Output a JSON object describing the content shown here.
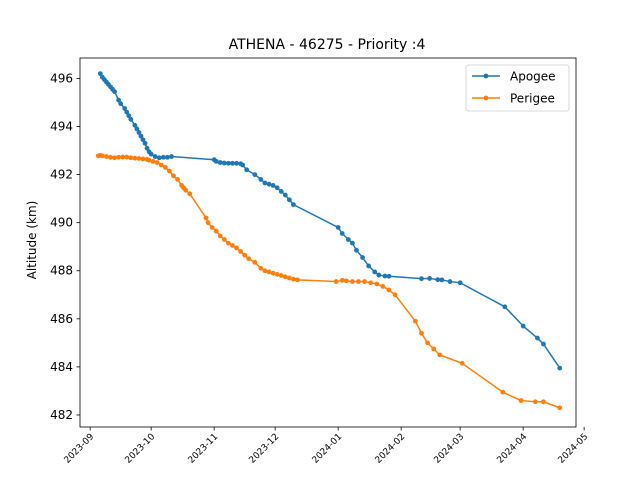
{
  "chart_data": {
    "type": "line",
    "title": "ATHENA - 46275 - Priority :4",
    "xlabel": "",
    "ylabel": "Altitude (km)",
    "xlim": [
      "2023-08-27",
      "2024-04-27"
    ],
    "ylim": [
      481.5,
      496.85
    ],
    "yticks": [
      482,
      484,
      486,
      488,
      490,
      492,
      494,
      496
    ],
    "xticks": [
      "2023-09",
      "2023-10",
      "2023-11",
      "2023-12",
      "2024-01",
      "2024-02",
      "2024-03",
      "2024-04",
      "2024-05"
    ],
    "legend_position": "top-right",
    "grid": false,
    "series": [
      {
        "name": "Apogee",
        "color": "#1f77b4",
        "points": [
          [
            "2023-09-06",
            496.2
          ],
          [
            "2023-09-07",
            496.05
          ],
          [
            "2023-09-08",
            495.95
          ],
          [
            "2023-09-09",
            495.85
          ],
          [
            "2023-09-10",
            495.75
          ],
          [
            "2023-09-11",
            495.65
          ],
          [
            "2023-09-12",
            495.55
          ],
          [
            "2023-09-13",
            495.45
          ],
          [
            "2023-09-15",
            495.1
          ],
          [
            "2023-09-16",
            494.95
          ],
          [
            "2023-09-18",
            494.75
          ],
          [
            "2023-09-19",
            494.6
          ],
          [
            "2023-09-20",
            494.45
          ],
          [
            "2023-09-21",
            494.3
          ],
          [
            "2023-09-23",
            494.05
          ],
          [
            "2023-09-24",
            493.9
          ],
          [
            "2023-09-25",
            493.75
          ],
          [
            "2023-09-26",
            493.6
          ],
          [
            "2023-09-27",
            493.45
          ],
          [
            "2023-09-28",
            493.3
          ],
          [
            "2023-09-29",
            493.1
          ],
          [
            "2023-09-30",
            492.95
          ],
          [
            "2023-10-01",
            492.85
          ],
          [
            "2023-10-03",
            492.75
          ],
          [
            "2023-10-05",
            492.7
          ],
          [
            "2023-10-07",
            492.72
          ],
          [
            "2023-10-09",
            492.72
          ],
          [
            "2023-10-11",
            492.75
          ],
          [
            "2023-11-01",
            492.62
          ],
          [
            "2023-11-02",
            492.55
          ],
          [
            "2023-11-04",
            492.5
          ],
          [
            "2023-11-06",
            492.48
          ],
          [
            "2023-11-08",
            492.47
          ],
          [
            "2023-11-10",
            492.47
          ],
          [
            "2023-11-12",
            492.47
          ],
          [
            "2023-11-14",
            492.45
          ],
          [
            "2023-11-15",
            492.4
          ],
          [
            "2023-11-17",
            492.2
          ],
          [
            "2023-11-21",
            492.0
          ],
          [
            "2023-11-24",
            491.8
          ],
          [
            "2023-11-26",
            491.65
          ],
          [
            "2023-11-28",
            491.6
          ],
          [
            "2023-11-30",
            491.55
          ],
          [
            "2023-12-02",
            491.45
          ],
          [
            "2023-12-04",
            491.3
          ],
          [
            "2023-12-06",
            491.15
          ],
          [
            "2023-12-08",
            490.95
          ],
          [
            "2023-12-10",
            490.75
          ],
          [
            "2024-01-01",
            489.8
          ],
          [
            "2024-01-03",
            489.55
          ],
          [
            "2024-01-06",
            489.3
          ],
          [
            "2024-01-08",
            489.15
          ],
          [
            "2024-01-10",
            488.85
          ],
          [
            "2024-01-13",
            488.55
          ],
          [
            "2024-01-16",
            488.2
          ],
          [
            "2024-01-19",
            487.95
          ],
          [
            "2024-01-21",
            487.82
          ],
          [
            "2024-01-24",
            487.78
          ],
          [
            "2024-01-26",
            487.77
          ],
          [
            "2024-02-11",
            487.67
          ],
          [
            "2024-02-15",
            487.68
          ],
          [
            "2024-02-19",
            487.63
          ],
          [
            "2024-02-21",
            487.62
          ],
          [
            "2024-02-25",
            487.55
          ],
          [
            "2024-03-01",
            487.5
          ],
          [
            "2024-03-23",
            486.5
          ],
          [
            "2024-04-01",
            485.7
          ],
          [
            "2024-04-08",
            485.2
          ],
          [
            "2024-04-11",
            484.95
          ],
          [
            "2024-04-19",
            483.95
          ]
        ]
      },
      {
        "name": "Perigee",
        "color": "#ff7f0e",
        "points": [
          [
            "2023-09-05",
            492.78
          ],
          [
            "2023-09-06",
            492.8
          ],
          [
            "2023-09-07",
            492.78
          ],
          [
            "2023-09-09",
            492.75
          ],
          [
            "2023-09-11",
            492.72
          ],
          [
            "2023-09-13",
            492.7
          ],
          [
            "2023-09-15",
            492.72
          ],
          [
            "2023-09-17",
            492.73
          ],
          [
            "2023-09-19",
            492.73
          ],
          [
            "2023-09-21",
            492.7
          ],
          [
            "2023-09-23",
            492.68
          ],
          [
            "2023-09-25",
            492.67
          ],
          [
            "2023-09-27",
            492.65
          ],
          [
            "2023-09-29",
            492.63
          ],
          [
            "2023-09-30",
            492.6
          ],
          [
            "2023-10-02",
            492.55
          ],
          [
            "2023-10-04",
            492.5
          ],
          [
            "2023-10-06",
            492.4
          ],
          [
            "2023-10-08",
            492.3
          ],
          [
            "2023-10-10",
            492.15
          ],
          [
            "2023-10-12",
            491.95
          ],
          [
            "2023-10-14",
            491.8
          ],
          [
            "2023-10-16",
            491.55
          ],
          [
            "2023-10-17",
            491.45
          ],
          [
            "2023-10-18",
            491.35
          ],
          [
            "2023-10-20",
            491.2
          ],
          [
            "2023-10-28",
            490.2
          ],
          [
            "2023-10-29",
            490.0
          ],
          [
            "2023-10-31",
            489.8
          ],
          [
            "2023-11-02",
            489.65
          ],
          [
            "2023-11-04",
            489.45
          ],
          [
            "2023-11-06",
            489.3
          ],
          [
            "2023-11-08",
            489.15
          ],
          [
            "2023-11-10",
            489.05
          ],
          [
            "2023-11-12",
            488.95
          ],
          [
            "2023-11-14",
            488.8
          ],
          [
            "2023-11-16",
            488.65
          ],
          [
            "2023-11-18",
            488.5
          ],
          [
            "2023-11-21",
            488.35
          ],
          [
            "2023-11-24",
            488.1
          ],
          [
            "2023-11-26",
            488.0
          ],
          [
            "2023-11-28",
            487.95
          ],
          [
            "2023-11-30",
            487.9
          ],
          [
            "2023-12-02",
            487.85
          ],
          [
            "2023-12-04",
            487.8
          ],
          [
            "2023-12-06",
            487.75
          ],
          [
            "2023-12-08",
            487.7
          ],
          [
            "2023-12-10",
            487.65
          ],
          [
            "2023-12-12",
            487.62
          ],
          [
            "2023-12-31",
            487.55
          ],
          [
            "2024-01-03",
            487.6
          ],
          [
            "2024-01-05",
            487.58
          ],
          [
            "2024-01-08",
            487.55
          ],
          [
            "2024-01-11",
            487.55
          ],
          [
            "2024-01-14",
            487.55
          ],
          [
            "2024-01-17",
            487.5
          ],
          [
            "2024-01-20",
            487.45
          ],
          [
            "2024-01-23",
            487.35
          ],
          [
            "2024-01-26",
            487.2
          ],
          [
            "2024-01-29",
            487.0
          ],
          [
            "2024-02-08",
            485.9
          ],
          [
            "2024-02-11",
            485.4
          ],
          [
            "2024-02-14",
            485.0
          ],
          [
            "2024-02-17",
            484.75
          ],
          [
            "2024-02-20",
            484.5
          ],
          [
            "2024-03-02",
            484.15
          ],
          [
            "2024-03-22",
            482.95
          ],
          [
            "2024-03-31",
            482.6
          ],
          [
            "2024-04-07",
            482.55
          ],
          [
            "2024-04-11",
            482.55
          ],
          [
            "2024-04-19",
            482.3
          ]
        ]
      }
    ]
  }
}
